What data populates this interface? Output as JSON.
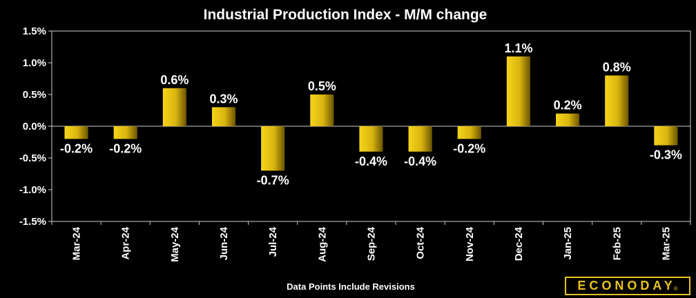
{
  "chart_data": {
    "type": "bar",
    "title": "Industrial Production Index - M/M change",
    "categories": [
      "Mar-24",
      "Apr-24",
      "May-24",
      "Jun-24",
      "Jul-24",
      "Aug-24",
      "Sep-24",
      "Oct-24",
      "Nov-24",
      "Dec-24",
      "Jan-25",
      "Feb-25",
      "Mar-25"
    ],
    "values": [
      -0.2,
      -0.2,
      0.6,
      0.3,
      -0.7,
      0.5,
      -0.4,
      -0.4,
      -0.2,
      1.1,
      0.2,
      0.8,
      -0.3
    ],
    "data_labels": [
      "-0.2%",
      "-0.2%",
      "0.6%",
      "0.3%",
      "-0.7%",
      "0.5%",
      "-0.4%",
      "-0.4%",
      "-0.2%",
      "1.1%",
      "0.2%",
      "0.8%",
      "-0.3%"
    ],
    "ylim": [
      -1.5,
      1.5
    ],
    "yticks": [
      1.5,
      1.0,
      0.5,
      0.0,
      -0.5,
      -1.0,
      -1.5
    ],
    "ytick_labels": [
      "1.5%",
      "1.0%",
      "0.5%",
      "0.0%",
      "-0.5%",
      "-1.0%",
      "-1.5%"
    ],
    "xlabel": "",
    "ylabel": "",
    "grid": false,
    "footnote": "Data Points Include Revisions",
    "bar_color": "#d9b40f",
    "background": "#000000"
  },
  "brand": {
    "name": "ECONODAY",
    "registered_mark": "®",
    "color": "#e8c21e"
  }
}
